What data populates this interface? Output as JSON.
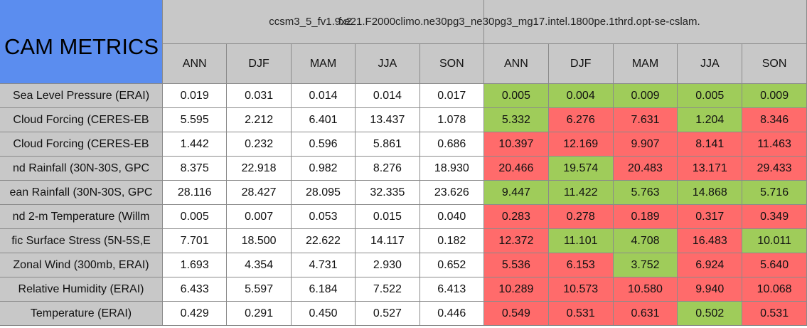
{
  "title": "CAM METRICS",
  "groups": [
    {
      "label": "ccsm3_5_fv1.9x2",
      "columns": [
        "ANN",
        "DJF",
        "MAM",
        "JJA",
        "SON"
      ]
    },
    {
      "label": "f.e21.F2000climo.ne30pg3_ne30pg3_mg17.intel.1800pe.1thrd.opt-se-cslam.",
      "columns": [
        "ANN",
        "DJF",
        "MAM",
        "JJA",
        "SON"
      ]
    }
  ],
  "highlight_colors": {
    "good": "#9fcc5a",
    "bad": "#ff6b6b"
  },
  "rows": [
    {
      "label": "Sea Level Pressure (ERAI)",
      "values": [
        "0.019",
        "0.031",
        "0.014",
        "0.014",
        "0.017",
        "0.005",
        "0.004",
        "0.009",
        "0.005",
        "0.009"
      ],
      "status": [
        "good",
        "good",
        "good",
        "good",
        "good"
      ]
    },
    {
      "label": "Cloud Forcing (CERES-EB",
      "values": [
        "5.595",
        "2.212",
        "6.401",
        "13.437",
        "1.078",
        "5.332",
        "6.276",
        "7.631",
        "1.204",
        "8.346"
      ],
      "status": [
        "good",
        "bad",
        "bad",
        "good",
        "bad"
      ]
    },
    {
      "label": "Cloud Forcing (CERES-EB",
      "values": [
        "1.442",
        "0.232",
        "0.596",
        "5.861",
        "0.686",
        "10.397",
        "12.169",
        "9.907",
        "8.141",
        "11.463"
      ],
      "status": [
        "bad",
        "bad",
        "bad",
        "bad",
        "bad"
      ]
    },
    {
      "label": "nd Rainfall (30N-30S, GPC",
      "values": [
        "8.375",
        "22.918",
        "0.982",
        "8.276",
        "18.930",
        "20.466",
        "19.574",
        "20.483",
        "13.171",
        "29.433"
      ],
      "status": [
        "bad",
        "good",
        "bad",
        "bad",
        "bad"
      ]
    },
    {
      "label": "ean Rainfall (30N-30S, GPC",
      "values": [
        "28.116",
        "28.427",
        "28.095",
        "32.335",
        "23.626",
        "9.447",
        "11.422",
        "5.763",
        "14.868",
        "5.716"
      ],
      "status": [
        "good",
        "good",
        "good",
        "good",
        "good"
      ]
    },
    {
      "label": "nd 2-m Temperature (Willm",
      "values": [
        "0.005",
        "0.007",
        "0.053",
        "0.015",
        "0.040",
        "0.283",
        "0.278",
        "0.189",
        "0.317",
        "0.349"
      ],
      "status": [
        "bad",
        "bad",
        "bad",
        "bad",
        "bad"
      ]
    },
    {
      "label": "fic Surface Stress (5N-5S,E",
      "values": [
        "7.701",
        "18.500",
        "22.622",
        "14.117",
        "0.182",
        "12.372",
        "11.101",
        "4.708",
        "16.483",
        "10.011"
      ],
      "status": [
        "bad",
        "good",
        "good",
        "bad",
        "good"
      ]
    },
    {
      "label": "Zonal Wind (300mb, ERAI)",
      "values": [
        "1.693",
        "4.354",
        "4.731",
        "2.930",
        "0.652",
        "5.536",
        "6.153",
        "3.752",
        "6.924",
        "5.640"
      ],
      "status": [
        "bad",
        "bad",
        "good",
        "bad",
        "bad"
      ]
    },
    {
      "label": "Relative Humidity (ERAI)",
      "values": [
        "6.433",
        "5.597",
        "6.184",
        "7.522",
        "6.413",
        "10.289",
        "10.573",
        "10.580",
        "9.940",
        "10.068"
      ],
      "status": [
        "bad",
        "bad",
        "bad",
        "bad",
        "bad"
      ]
    },
    {
      "label": "Temperature (ERAI)",
      "values": [
        "0.429",
        "0.291",
        "0.450",
        "0.527",
        "0.446",
        "0.549",
        "0.531",
        "0.631",
        "0.502",
        "0.531"
      ],
      "status": [
        "bad",
        "bad",
        "bad",
        "good",
        "bad"
      ]
    }
  ]
}
